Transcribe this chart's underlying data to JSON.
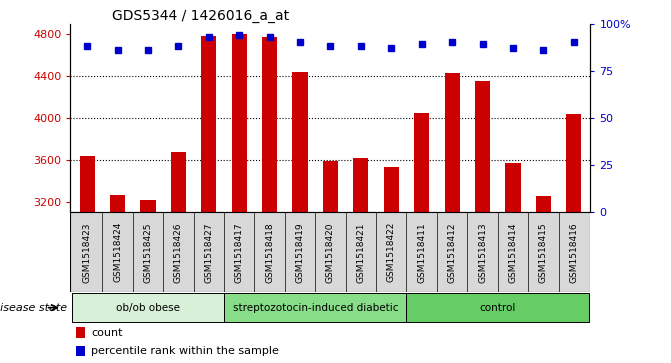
{
  "title": "GDS5344 / 1426016_a_at",
  "samples": [
    "GSM1518423",
    "GSM1518424",
    "GSM1518425",
    "GSM1518426",
    "GSM1518427",
    "GSM1518417",
    "GSM1518418",
    "GSM1518419",
    "GSM1518420",
    "GSM1518421",
    "GSM1518422",
    "GSM1518411",
    "GSM1518412",
    "GSM1518413",
    "GSM1518414",
    "GSM1518415",
    "GSM1518416"
  ],
  "counts": [
    3640,
    3270,
    3215,
    3680,
    4780,
    4800,
    4770,
    4440,
    3590,
    3620,
    3535,
    4050,
    4430,
    4350,
    3570,
    3260,
    4040
  ],
  "percentile_ranks": [
    88,
    86,
    86,
    88,
    93,
    94,
    93,
    90,
    88,
    88,
    87,
    89,
    90,
    89,
    87,
    86,
    90
  ],
  "groups": [
    {
      "label": "ob/ob obese",
      "start": 0,
      "end": 5,
      "color": "#d8f0d8"
    },
    {
      "label": "streptozotocin-induced diabetic",
      "start": 5,
      "end": 11,
      "color": "#88dd88"
    },
    {
      "label": "control",
      "start": 11,
      "end": 17,
      "color": "#66cc66"
    }
  ],
  "bar_color": "#cc0000",
  "dot_color": "#0000cc",
  "ylim_left": [
    3100,
    4900
  ],
  "ylim_right": [
    0,
    100
  ],
  "yticks_left": [
    3200,
    3600,
    4000,
    4400,
    4800
  ],
  "yticks_right": [
    0,
    25,
    50,
    75,
    100
  ],
  "grid_values": [
    3600,
    4000,
    4400
  ],
  "bar_width": 0.5,
  "label_bg_color": "#d8d8d8",
  "plot_bg_color": "#ffffff"
}
